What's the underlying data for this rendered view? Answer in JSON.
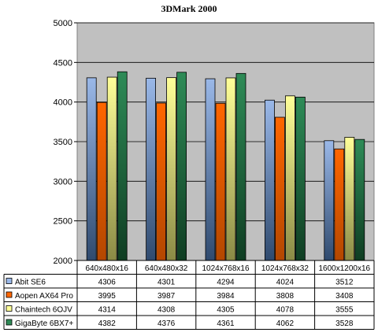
{
  "chart_data": {
    "type": "bar",
    "title": "3DMark 2000",
    "categories": [
      "640x480x16",
      "640x480x32",
      "1024x768x16",
      "1024x768x32",
      "1600x1200x16"
    ],
    "series": [
      {
        "name": "Abit SE6",
        "color": "#9ab8e8",
        "values": [
          4306,
          4301,
          4294,
          4024,
          3512
        ]
      },
      {
        "name": "Aopen AX64 Pro",
        "color": "#ff6600",
        "values": [
          3995,
          3987,
          3984,
          3808,
          3408
        ]
      },
      {
        "name": "Chaintech 6OJV",
        "color": "#ffff99",
        "values": [
          4314,
          4308,
          4305,
          4078,
          3555
        ]
      },
      {
        "name": "GigaByte 6BX7+",
        "color": "#2e8b57",
        "values": [
          4382,
          4376,
          4361,
          4062,
          3528
        ]
      }
    ],
    "ylim": [
      2000,
      5000
    ],
    "yticks": [
      2000,
      2500,
      3000,
      3500,
      4000,
      4500,
      5000
    ],
    "grid": true,
    "legend": "data-table-below",
    "plot_background": "#c0c0c0"
  }
}
